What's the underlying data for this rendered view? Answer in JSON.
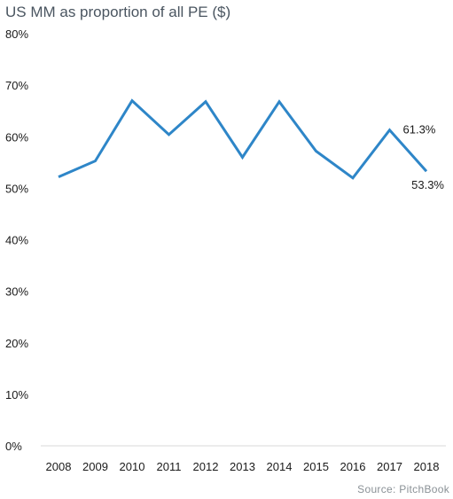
{
  "chart_data": {
    "type": "line",
    "title": "US MM as proportion of all PE ($)",
    "xlabel": "",
    "ylabel": "",
    "categories": [
      "2008",
      "2009",
      "2010",
      "2011",
      "2012",
      "2013",
      "2014",
      "2015",
      "2016",
      "2017",
      "2018"
    ],
    "series": [
      {
        "values": [
          52.2,
          55.3,
          67.0,
          60.4,
          66.8,
          56.0,
          66.8,
          57.2,
          52.0,
          61.3,
          53.3
        ],
        "color": "#2e86c8"
      }
    ],
    "ylim": [
      0,
      80
    ],
    "y_ticks": [
      0,
      10,
      20,
      30,
      40,
      50,
      60,
      70,
      80
    ],
    "y_tick_labels": [
      "0%",
      "10%",
      "20%",
      "30%",
      "40%",
      "50%",
      "60%",
      "70%",
      "80%"
    ],
    "grid": false,
    "data_labels": [
      {
        "category": "2017",
        "text": "61.3%"
      },
      {
        "category": "2018",
        "text": "53.3%"
      }
    ],
    "axis_color": "#d9d9d9"
  },
  "source": "Source: PitchBook"
}
